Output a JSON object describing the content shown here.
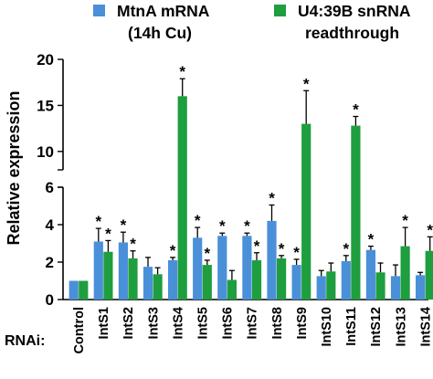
{
  "chart_data": {
    "type": "bar",
    "ylabel": "Relative expression",
    "row_label": "RNAi:",
    "categories": [
      "Control",
      "IntS1",
      "IntS2",
      "IntS3",
      "IntS4",
      "IntS5",
      "IntS6",
      "IntS7",
      "IntS8",
      "IntS9",
      "IntS10",
      "IntS11",
      "IntS12",
      "IntS13",
      "IntS14"
    ],
    "y_axis": {
      "broken": true,
      "lower_range": [
        0,
        6
      ],
      "lower_ticks": [
        "0",
        "2",
        "4",
        "6"
      ],
      "upper_range": [
        8,
        20
      ],
      "upper_ticks": [
        "10",
        "15",
        "20"
      ]
    },
    "series": [
      {
        "name": "MtnA mRNA (14h Cu)",
        "legend_lines": [
          "MtnA mRNA",
          "(14h Cu)"
        ],
        "color": "#4a90d9",
        "values": [
          1.0,
          3.1,
          3.05,
          1.75,
          2.1,
          3.3,
          3.4,
          3.4,
          4.2,
          1.85,
          1.25,
          2.05,
          2.65,
          1.25,
          1.3
        ],
        "errors": [
          0.0,
          0.7,
          0.55,
          0.5,
          0.15,
          0.55,
          0.15,
          0.15,
          0.85,
          0.3,
          0.3,
          0.3,
          0.2,
          0.6,
          0.15
        ],
        "significant": [
          false,
          true,
          true,
          false,
          true,
          true,
          true,
          true,
          true,
          true,
          false,
          true,
          true,
          false,
          false
        ]
      },
      {
        "name": "U4:39B snRNA readthrough",
        "legend_lines": [
          "U4:39B snRNA",
          "readthrough"
        ],
        "color": "#1e9e3e",
        "values": [
          1.0,
          2.55,
          2.2,
          1.35,
          16.0,
          1.85,
          1.05,
          2.1,
          2.2,
          13.0,
          1.5,
          12.8,
          1.45,
          2.85,
          2.6
        ],
        "errors": [
          0.0,
          0.6,
          0.4,
          0.35,
          1.9,
          0.25,
          0.5,
          0.4,
          0.15,
          3.6,
          0.45,
          1.0,
          0.5,
          1.0,
          0.75
        ],
        "significant": [
          false,
          true,
          true,
          false,
          true,
          true,
          false,
          true,
          true,
          true,
          false,
          true,
          false,
          true,
          true
        ]
      }
    ],
    "significance_marker": "*"
  }
}
